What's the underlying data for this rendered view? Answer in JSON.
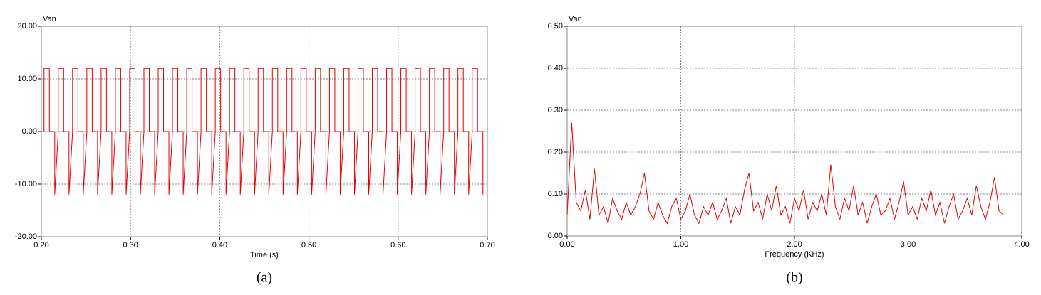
{
  "chart_data": [
    {
      "type": "line",
      "title": "Van",
      "xlabel": "Time (s)",
      "caption": "(a)",
      "color": "#e60000",
      "grid": true,
      "xlim": [
        0.2,
        0.7
      ],
      "ylim": [
        -20,
        20
      ],
      "xticks": [
        {
          "value": 0.2,
          "label": "0.20"
        },
        {
          "value": 0.3,
          "label": "0.30"
        },
        {
          "value": 0.4,
          "label": "0.40"
        },
        {
          "value": 0.5,
          "label": "0.50"
        },
        {
          "value": 0.6,
          "label": "0.60"
        },
        {
          "value": 0.7,
          "label": "0.70"
        }
      ],
      "yticks": [
        {
          "value": -20,
          "label": "-20.00"
        },
        {
          "value": -10,
          "label": "-10.00"
        },
        {
          "value": 0,
          "label": "0.00"
        },
        {
          "value": 10,
          "label": "10.00"
        },
        {
          "value": 20,
          "label": "20.00"
        }
      ],
      "x": [
        0.203,
        0.203,
        0.209,
        0.209,
        0.215,
        0.215,
        0.219,
        0.219,
        0.225,
        0.225,
        0.231,
        0.231,
        0.235,
        0.235,
        0.241,
        0.241,
        0.247,
        0.247,
        0.251,
        0.251,
        0.257,
        0.257,
        0.263,
        0.263,
        0.267,
        0.267,
        0.273,
        0.273,
        0.279,
        0.279,
        0.283,
        0.283,
        0.289,
        0.289,
        0.295,
        0.295,
        0.299,
        0.299,
        0.305,
        0.305,
        0.311,
        0.311,
        0.315,
        0.315,
        0.321,
        0.321,
        0.327,
        0.327,
        0.331,
        0.331,
        0.337,
        0.337,
        0.343,
        0.343,
        0.347,
        0.347,
        0.353,
        0.353,
        0.359,
        0.359,
        0.363,
        0.363,
        0.369,
        0.369,
        0.375,
        0.375,
        0.379,
        0.379,
        0.385,
        0.385,
        0.391,
        0.391,
        0.395,
        0.395,
        0.401,
        0.401,
        0.407,
        0.407,
        0.411,
        0.411,
        0.417,
        0.417,
        0.423,
        0.423,
        0.427,
        0.427,
        0.433,
        0.433,
        0.439,
        0.439,
        0.443,
        0.443,
        0.449,
        0.449,
        0.455,
        0.455,
        0.459,
        0.459,
        0.465,
        0.465,
        0.471,
        0.471,
        0.475,
        0.475,
        0.481,
        0.481,
        0.487,
        0.487,
        0.491,
        0.491,
        0.497,
        0.497,
        0.503,
        0.503,
        0.507,
        0.507,
        0.513,
        0.513,
        0.519,
        0.519,
        0.523,
        0.523,
        0.529,
        0.529,
        0.535,
        0.535,
        0.539,
        0.539,
        0.545,
        0.545,
        0.551,
        0.551,
        0.555,
        0.555,
        0.561,
        0.561,
        0.567,
        0.567,
        0.571,
        0.571,
        0.577,
        0.577,
        0.583,
        0.583,
        0.587,
        0.587,
        0.593,
        0.593,
        0.599,
        0.599,
        0.603,
        0.603,
        0.609,
        0.609,
        0.615,
        0.615,
        0.619,
        0.619,
        0.625,
        0.625,
        0.631,
        0.631,
        0.635,
        0.635,
        0.641,
        0.641,
        0.647,
        0.647,
        0.651,
        0.651,
        0.657,
        0.657,
        0.663,
        0.663,
        0.667,
        0.667,
        0.673,
        0.673,
        0.679,
        0.679,
        0.683,
        0.683,
        0.689,
        0.689,
        0.695,
        0.695
      ],
      "values": [
        0,
        12,
        12,
        0,
        0,
        -12,
        0,
        12,
        12,
        0,
        0,
        -12,
        0,
        12,
        12,
        0,
        0,
        -12,
        0,
        12,
        12,
        0,
        0,
        -12,
        0,
        12,
        12,
        0,
        0,
        -12,
        0,
        12,
        12,
        0,
        0,
        -12,
        0,
        12,
        12,
        0,
        0,
        -12,
        0,
        12,
        12,
        0,
        0,
        -12,
        0,
        12,
        12,
        0,
        0,
        -12,
        0,
        12,
        12,
        0,
        0,
        -12,
        0,
        12,
        12,
        0,
        0,
        -12,
        0,
        12,
        12,
        0,
        0,
        -12,
        0,
        12,
        12,
        0,
        0,
        -12,
        0,
        12,
        12,
        0,
        0,
        -12,
        0,
        12,
        12,
        0,
        0,
        -12,
        0,
        12,
        12,
        0,
        0,
        -12,
        0,
        12,
        12,
        0,
        0,
        -12,
        0,
        12,
        12,
        0,
        0,
        -12,
        0,
        12,
        12,
        0,
        0,
        -12,
        0,
        12,
        12,
        0,
        0,
        -12,
        0,
        12,
        12,
        0,
        0,
        -12,
        0,
        12,
        12,
        0,
        0,
        -12,
        0,
        12,
        12,
        0,
        0,
        -12,
        0,
        12,
        12,
        0,
        0,
        -12,
        0,
        12,
        12,
        0,
        0,
        -12,
        0,
        12,
        12,
        0,
        0,
        -12,
        0,
        12,
        12,
        0,
        0,
        -12,
        0,
        12,
        12,
        0,
        0,
        -12,
        0,
        12,
        12,
        0,
        0,
        -12,
        0,
        12,
        12,
        0,
        0,
        -12,
        0,
        12,
        12,
        0,
        0,
        -12
      ]
    },
    {
      "type": "line",
      "title": "Van",
      "xlabel": "Frequency (KHz)",
      "caption": "(b)",
      "color": "#e60000",
      "grid": true,
      "xlim": [
        0,
        4
      ],
      "ylim": [
        0,
        0.5
      ],
      "xticks": [
        {
          "value": 0,
          "label": "0.00"
        },
        {
          "value": 1,
          "label": "1.00"
        },
        {
          "value": 2,
          "label": "2.00"
        },
        {
          "value": 3,
          "label": "3.00"
        },
        {
          "value": 4,
          "label": "4.00"
        }
      ],
      "yticks": [
        {
          "value": 0,
          "label": "0.00"
        },
        {
          "value": 0.1,
          "label": "0.10"
        },
        {
          "value": 0.2,
          "label": "0.20"
        },
        {
          "value": 0.3,
          "label": "0.30"
        },
        {
          "value": 0.4,
          "label": "0.40"
        },
        {
          "value": 0.5,
          "label": "0.50"
        }
      ],
      "x": [
        0,
        0.04,
        0.08,
        0.12,
        0.16,
        0.2,
        0.24,
        0.28,
        0.32,
        0.36,
        0.4,
        0.44,
        0.48,
        0.52,
        0.56,
        0.6,
        0.64,
        0.68,
        0.72,
        0.76,
        0.8,
        0.84,
        0.88,
        0.92,
        0.96,
        1,
        1.04,
        1.08,
        1.12,
        1.16,
        1.2,
        1.24,
        1.28,
        1.32,
        1.36,
        1.4,
        1.44,
        1.48,
        1.52,
        1.56,
        1.6,
        1.64,
        1.68,
        1.72,
        1.76,
        1.8,
        1.84,
        1.88,
        1.92,
        1.96,
        2,
        2.04,
        2.08,
        2.12,
        2.16,
        2.2,
        2.24,
        2.28,
        2.32,
        2.36,
        2.4,
        2.44,
        2.48,
        2.52,
        2.56,
        2.6,
        2.64,
        2.68,
        2.72,
        2.76,
        2.8,
        2.84,
        2.88,
        2.92,
        2.96,
        3,
        3.04,
        3.08,
        3.12,
        3.16,
        3.2,
        3.24,
        3.28,
        3.32,
        3.36,
        3.4,
        3.44,
        3.48,
        3.52,
        3.56,
        3.6,
        3.64,
        3.68,
        3.72,
        3.76,
        3.8,
        3.84
      ],
      "values": [
        0.05,
        0.27,
        0.08,
        0.06,
        0.11,
        0.04,
        0.16,
        0.05,
        0.07,
        0.03,
        0.09,
        0.06,
        0.04,
        0.08,
        0.05,
        0.07,
        0.1,
        0.15,
        0.06,
        0.04,
        0.08,
        0.05,
        0.03,
        0.07,
        0.09,
        0.04,
        0.06,
        0.1,
        0.05,
        0.03,
        0.07,
        0.05,
        0.08,
        0.04,
        0.06,
        0.09,
        0.03,
        0.07,
        0.05,
        0.11,
        0.15,
        0.06,
        0.08,
        0.04,
        0.1,
        0.06,
        0.12,
        0.05,
        0.07,
        0.03,
        0.09,
        0.06,
        0.11,
        0.04,
        0.08,
        0.06,
        0.1,
        0.05,
        0.17,
        0.07,
        0.04,
        0.09,
        0.06,
        0.12,
        0.05,
        0.08,
        0.03,
        0.07,
        0.1,
        0.05,
        0.06,
        0.09,
        0.04,
        0.08,
        0.13,
        0.05,
        0.07,
        0.04,
        0.09,
        0.06,
        0.11,
        0.05,
        0.08,
        0.03,
        0.07,
        0.1,
        0.04,
        0.06,
        0.09,
        0.05,
        0.12,
        0.07,
        0.04,
        0.08,
        0.14,
        0.06,
        0.05
      ]
    }
  ]
}
